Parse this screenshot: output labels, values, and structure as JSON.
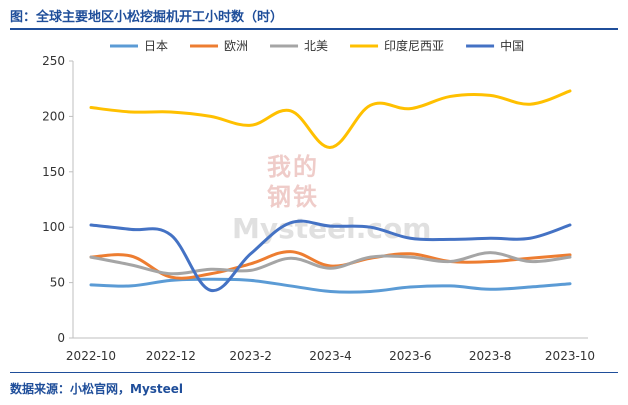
{
  "header": {
    "title": "图：全球主要地区小松挖掘机开工小时数（时）"
  },
  "footer": {
    "source": "数据来源：小松官网，Mysteel"
  },
  "watermark": {
    "logo_text": "我的钢铁",
    "brand": "Mysteel.com"
  },
  "colors": {
    "日本": "#5b9bd5",
    "欧洲": "#ed7d31",
    "北美": "#a5a5a5",
    "印度尼西亚": "#ffc000",
    "中国": "#4472c4",
    "axis": "#bfbfbf",
    "title": "#1f4e9a"
  },
  "chart_data": {
    "type": "line",
    "title": "",
    "xlabel": "",
    "ylabel": "",
    "x": [
      "2022-10",
      "2022-11",
      "2022-12",
      "2023-1",
      "2023-2",
      "2023-3",
      "2023-4",
      "2023-5",
      "2023-6",
      "2023-7",
      "2023-8",
      "2023-9",
      "2023-10"
    ],
    "x_tick_labels": [
      "2022-10",
      "2022-12",
      "2023-2",
      "2023-4",
      "2023-6",
      "2023-8",
      "2023-10"
    ],
    "ylim": [
      0,
      250
    ],
    "y_ticks": [
      0,
      50,
      100,
      150,
      200,
      250
    ],
    "grid": false,
    "legend": "top",
    "series": [
      {
        "name": "日本",
        "values": [
          48,
          47,
          52,
          53,
          52,
          47,
          42,
          42,
          46,
          47,
          44,
          46,
          49
        ]
      },
      {
        "name": "欧洲",
        "values": [
          73,
          74,
          55,
          58,
          67,
          78,
          65,
          72,
          76,
          69,
          69,
          72,
          75
        ]
      },
      {
        "name": "北美",
        "values": [
          73,
          66,
          58,
          62,
          61,
          72,
          63,
          73,
          73,
          69,
          77,
          69,
          73
        ]
      },
      {
        "name": "印度尼西亚",
        "values": [
          208,
          204,
          204,
          200,
          192,
          205,
          172,
          210,
          207,
          218,
          219,
          211,
          223
        ]
      },
      {
        "name": "中国",
        "values": [
          102,
          98,
          93,
          43,
          76,
          104,
          101,
          100,
          90,
          89,
          90,
          90,
          102
        ]
      }
    ]
  }
}
